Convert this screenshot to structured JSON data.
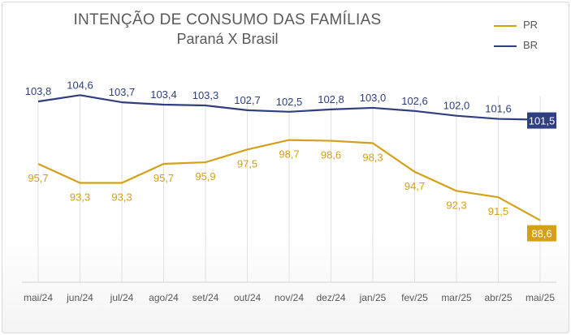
{
  "chart_data": {
    "type": "line",
    "title": "INTENÇÃO DE CONSUMO DAS FAMÍLIAS",
    "subtitle": "Paraná X Brasil",
    "categories": [
      "mai/24",
      "jun/24",
      "jul/24",
      "ago/24",
      "set/24",
      "out/24",
      "nov/24",
      "dez/24",
      "jan/25",
      "fev/25",
      "mar/25",
      "abr/25",
      "mai/25"
    ],
    "series": [
      {
        "name": "PR",
        "color": "#d4a017",
        "values": [
          95.7,
          93.3,
          93.3,
          95.7,
          95.9,
          97.5,
          98.7,
          98.6,
          98.3,
          94.7,
          92.3,
          91.5,
          88.6
        ],
        "labels": [
          "95,7",
          "93,3",
          "93,3",
          "95,7",
          "95,9",
          "97,5",
          "98,7",
          "98,6",
          "98,3",
          "94,7",
          "92,3",
          "91,5",
          "88,6"
        ]
      },
      {
        "name": "BR",
        "color": "#2f3f7f",
        "values": [
          103.8,
          104.6,
          103.7,
          103.4,
          103.3,
          102.7,
          102.5,
          102.8,
          103.0,
          102.6,
          102.0,
          101.6,
          101.5
        ],
        "labels": [
          "103,8",
          "104,6",
          "103,7",
          "103,4",
          "103,3",
          "102,7",
          "102,5",
          "102,8",
          "103,0",
          "102,6",
          "102,0",
          "101,6",
          "101,5"
        ]
      }
    ],
    "legend_position": "top-right",
    "grid": "vertical",
    "last_point_highlighted": true
  }
}
